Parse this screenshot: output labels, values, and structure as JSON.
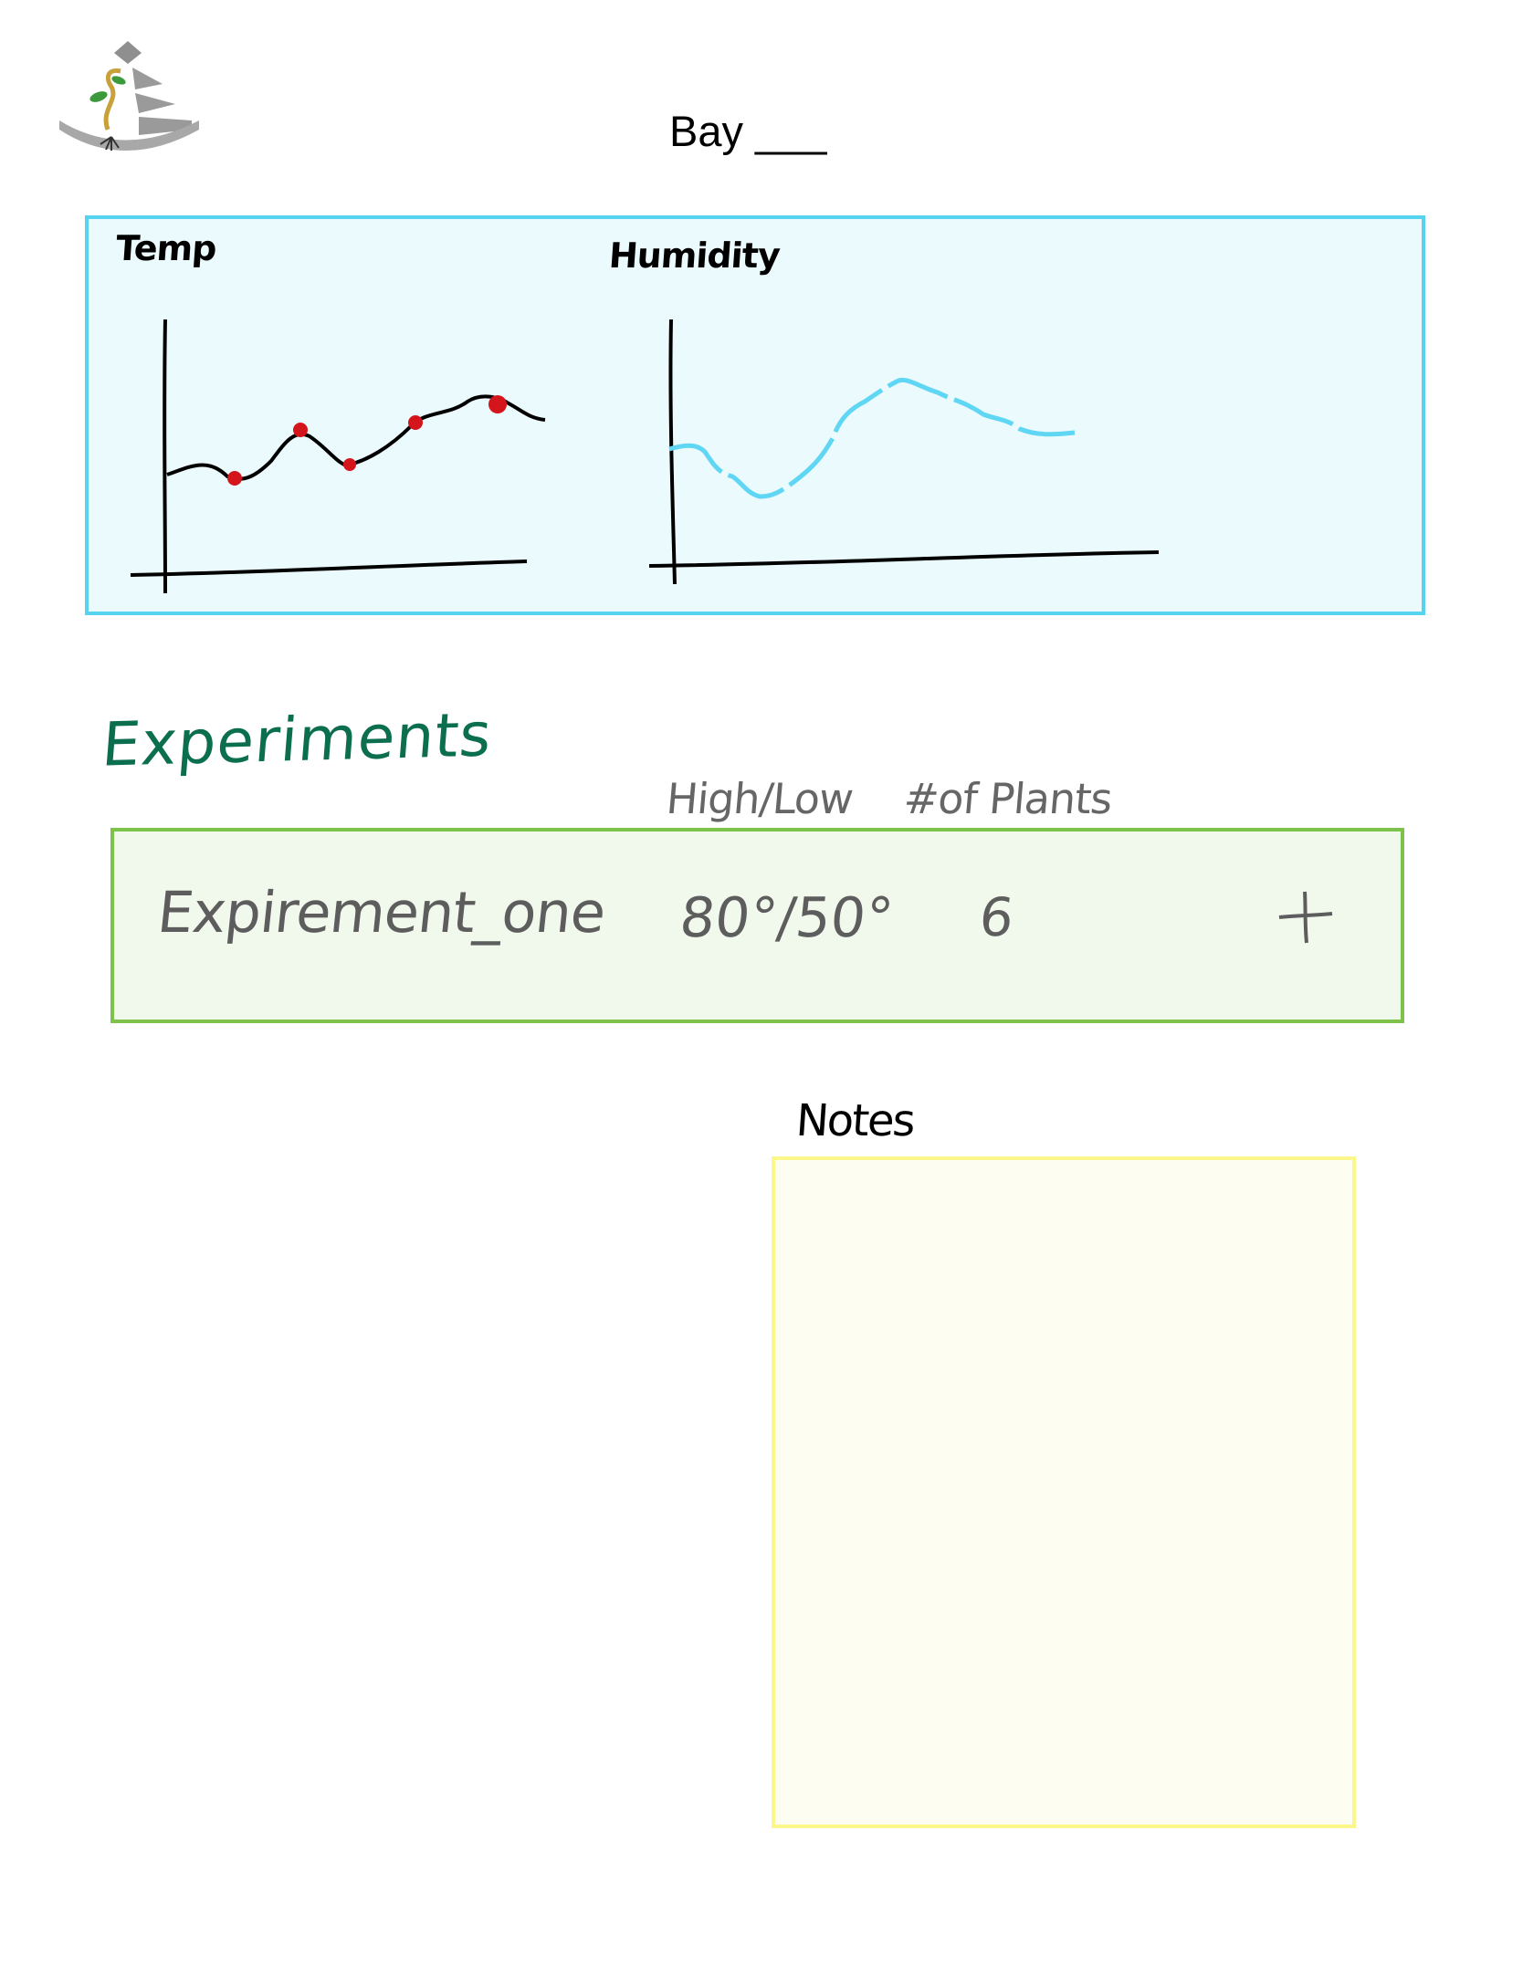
{
  "header": {
    "logo_icon": "plant-pyramid-logo-icon",
    "bay_title": "Bay ___"
  },
  "sensors": {
    "temp_label": "Temp",
    "humidity_label": "Humidity",
    "panel_border_color": "#55d3ef",
    "panel_background": "#ebfafd"
  },
  "experiments": {
    "heading": "Experiments",
    "heading_color": "#0b6e4f",
    "columns": {
      "high_low": "High/Low",
      "plants": "#of Plants"
    },
    "rows": [
      {
        "name": "Expirement_one",
        "high_low": "80°/50°",
        "plants": "6"
      }
    ],
    "add_icon": "plus-icon"
  },
  "notes": {
    "label": "Notes",
    "value": ""
  }
}
